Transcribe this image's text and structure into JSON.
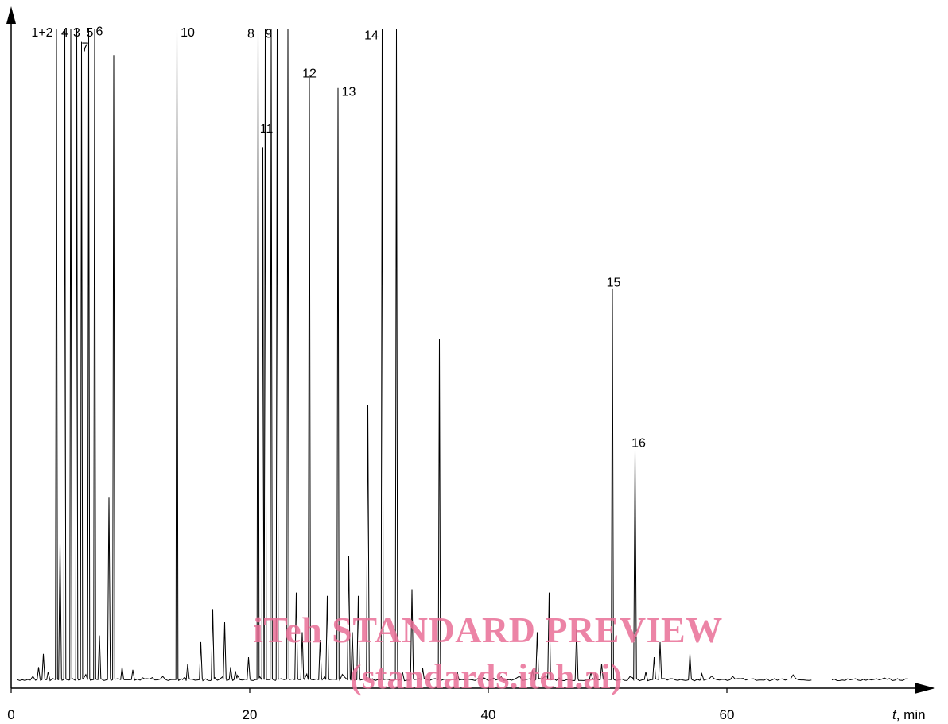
{
  "chart_data": {
    "type": "line",
    "title": "",
    "xlabel": "t, min",
    "xlabel_italic_part": "t",
    "xlabel_unit_part": ", min",
    "ylabel": "",
    "xlim": [
      0,
      77
    ],
    "ylim": [
      0,
      100
    ],
    "grid": false,
    "x_ticks": [
      0,
      20,
      40,
      60
    ],
    "x_tick_labels": [
      "0",
      "20",
      "40",
      "60"
    ],
    "baseline": 1.3,
    "gap": [
      67.2,
      68.8
    ],
    "series": [
      {
        "peaks": [
          {
            "t": 2.3,
            "h": 3.2
          },
          {
            "t": 2.7,
            "h": 5.2
          },
          {
            "t": 3.1,
            "h": 2.5
          },
          {
            "t": 3.8,
            "h": 100
          },
          {
            "t": 4.1,
            "h": 22
          },
          {
            "t": 4.5,
            "h": 100
          },
          {
            "t": 5.0,
            "h": 100
          },
          {
            "t": 5.5,
            "h": 100
          },
          {
            "t": 5.9,
            "h": 98
          },
          {
            "t": 6.5,
            "h": 100
          },
          {
            "t": 7.0,
            "h": 100
          },
          {
            "t": 7.4,
            "h": 8
          },
          {
            "t": 8.2,
            "h": 29
          },
          {
            "t": 8.6,
            "h": 96
          },
          {
            "t": 9.3,
            "h": 3.2
          },
          {
            "t": 10.2,
            "h": 2.8
          },
          {
            "t": 11.0,
            "h": 1.6
          },
          {
            "t": 13.9,
            "h": 100
          },
          {
            "t": 14.5,
            "h": 1.6
          },
          {
            "t": 14.8,
            "h": 3.7
          },
          {
            "t": 15.9,
            "h": 7.0
          },
          {
            "t": 16.9,
            "h": 12
          },
          {
            "t": 17.9,
            "h": 10
          },
          {
            "t": 18.4,
            "h": 3.2
          },
          {
            "t": 18.8,
            "h": 2.6
          },
          {
            "t": 19.9,
            "h": 4.7
          },
          {
            "t": 20.7,
            "h": 100
          },
          {
            "t": 21.1,
            "h": 82
          },
          {
            "t": 21.3,
            "h": 100
          },
          {
            "t": 21.8,
            "h": 100
          },
          {
            "t": 22.3,
            "h": 100
          },
          {
            "t": 23.2,
            "h": 100
          },
          {
            "t": 23.9,
            "h": 14.5
          },
          {
            "t": 24.4,
            "h": 8.5
          },
          {
            "t": 25.0,
            "h": 93
          },
          {
            "t": 25.9,
            "h": 7.3
          },
          {
            "t": 26.5,
            "h": 14
          },
          {
            "t": 27.4,
            "h": 91
          },
          {
            "t": 28.3,
            "h": 20
          },
          {
            "t": 28.6,
            "h": 8.5
          },
          {
            "t": 29.1,
            "h": 14
          },
          {
            "t": 29.9,
            "h": 43
          },
          {
            "t": 31.1,
            "h": 100
          },
          {
            "t": 32.3,
            "h": 100
          },
          {
            "t": 32.8,
            "h": 2.5
          },
          {
            "t": 33.6,
            "h": 15
          },
          {
            "t": 34.5,
            "h": 3
          },
          {
            "t": 35.9,
            "h": 53
          },
          {
            "t": 37.4,
            "h": 2.5
          },
          {
            "t": 39.6,
            "h": 1.6
          },
          {
            "t": 43.7,
            "h": 2.8
          },
          {
            "t": 44.1,
            "h": 8.5
          },
          {
            "t": 45.1,
            "h": 14.5
          },
          {
            "t": 47.4,
            "h": 9
          },
          {
            "t": 48.6,
            "h": 2.5
          },
          {
            "t": 49.0,
            "h": 2.3
          },
          {
            "t": 49.5,
            "h": 3.7
          },
          {
            "t": 50.4,
            "h": 60.5
          },
          {
            "t": 52.3,
            "h": 36
          },
          {
            "t": 53.2,
            "h": 2.5
          },
          {
            "t": 53.9,
            "h": 4.7
          },
          {
            "t": 54.4,
            "h": 7.0
          },
          {
            "t": 56.9,
            "h": 5.2
          },
          {
            "t": 57.9,
            "h": 2.2
          }
        ]
      }
    ],
    "annotations": [
      {
        "text": "1+2",
        "t": 2.6,
        "h": 100
      },
      {
        "text": "4",
        "t": 4.5,
        "h": 100
      },
      {
        "text": "3",
        "t": 5.5,
        "h": 100
      },
      {
        "text": "5",
        "t": 6.6,
        "h": 100
      },
      {
        "text": "7",
        "t": 6.2,
        "h": 97.8
      },
      {
        "text": "6",
        "t": 7.4,
        "h": 100.2
      },
      {
        "text": "10",
        "t": 14.8,
        "h": 100
      },
      {
        "text": "8",
        "t": 20.1,
        "h": 99.8
      },
      {
        "text": "9",
        "t": 21.6,
        "h": 99.8
      },
      {
        "text": "11",
        "t": 21.4,
        "h": 85.4
      },
      {
        "text": "12",
        "t": 25.0,
        "h": 93.8
      },
      {
        "text": "13",
        "t": 28.3,
        "h": 91.0
      },
      {
        "text": "14",
        "t": 30.2,
        "h": 99.6
      },
      {
        "text": "15",
        "t": 50.5,
        "h": 62.1
      },
      {
        "text": "16",
        "t": 52.6,
        "h": 37.8
      }
    ]
  },
  "watermark": {
    "line1": "iTeh STANDARD PREVIEW",
    "line2": "(standards.iteh.ai)"
  }
}
